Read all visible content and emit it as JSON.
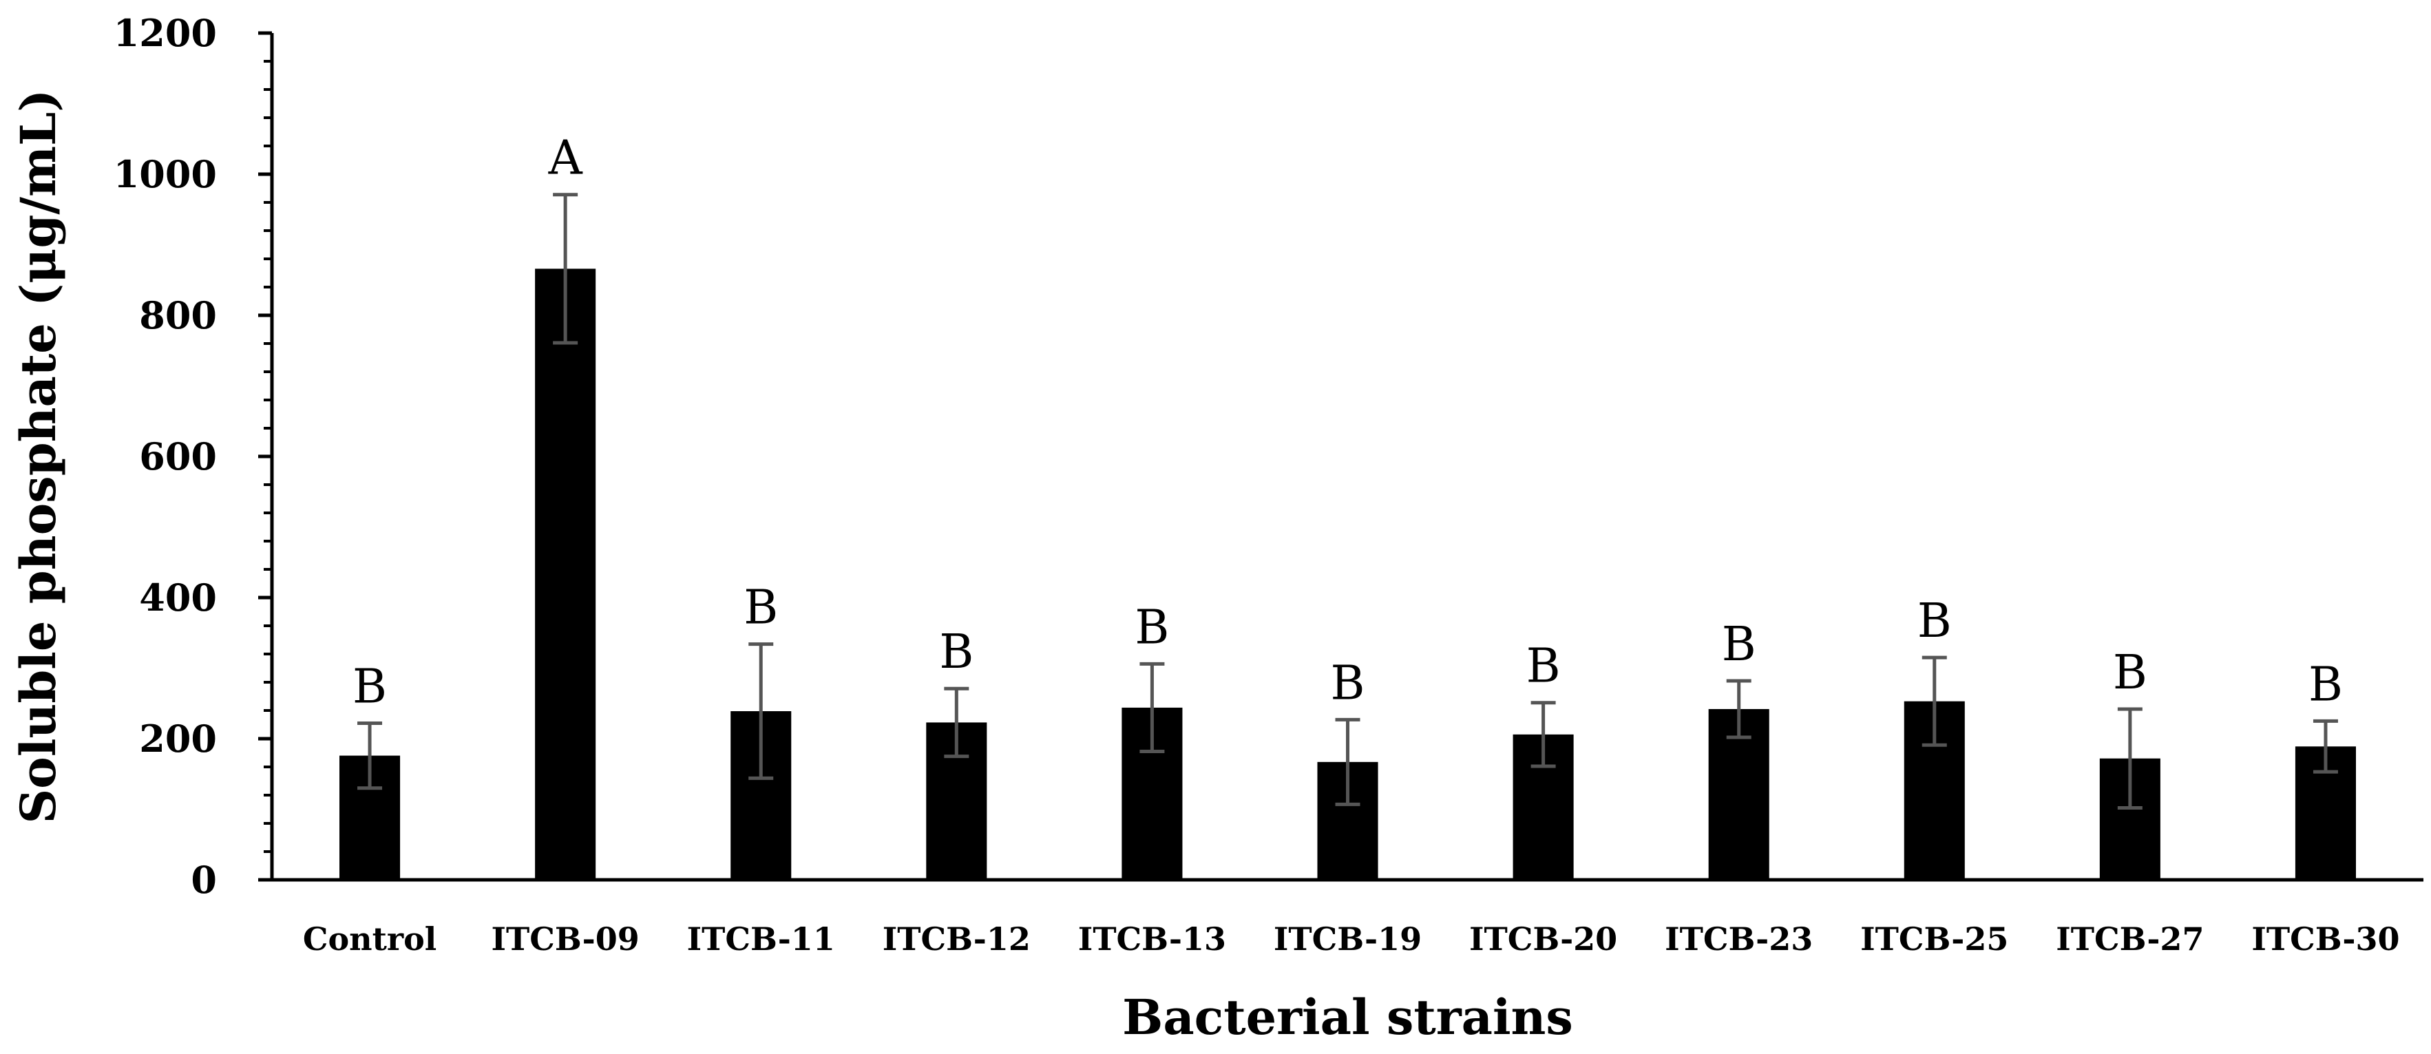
{
  "chart_data": {
    "type": "bar",
    "title": "",
    "xlabel": "Bacterial strains",
    "ylabel": "Soluble phosphate (μg/mL)",
    "ylim": [
      0,
      1200
    ],
    "yticks": [
      0,
      200,
      400,
      600,
      800,
      1000,
      1200
    ],
    "grid": false,
    "bar_color": "#000000",
    "error_bar_color": "#555555",
    "categories": [
      "Control",
      "ITCB-09",
      "ITCB-11",
      "ITCB-12",
      "ITCB-13",
      "ITCB-19",
      "ITCB-20",
      "ITCB-23",
      "ITCB-25",
      "ITCB-27",
      "ITCB-30"
    ],
    "values": [
      176,
      866,
      239,
      223,
      244,
      167,
      206,
      242,
      253,
      172,
      189
    ],
    "errors": [
      46,
      105,
      95,
      48,
      62,
      60,
      45,
      40,
      62,
      70,
      36
    ],
    "significance": [
      "B",
      "A",
      "B",
      "B",
      "B",
      "B",
      "B",
      "B",
      "B",
      "B",
      "B"
    ]
  }
}
